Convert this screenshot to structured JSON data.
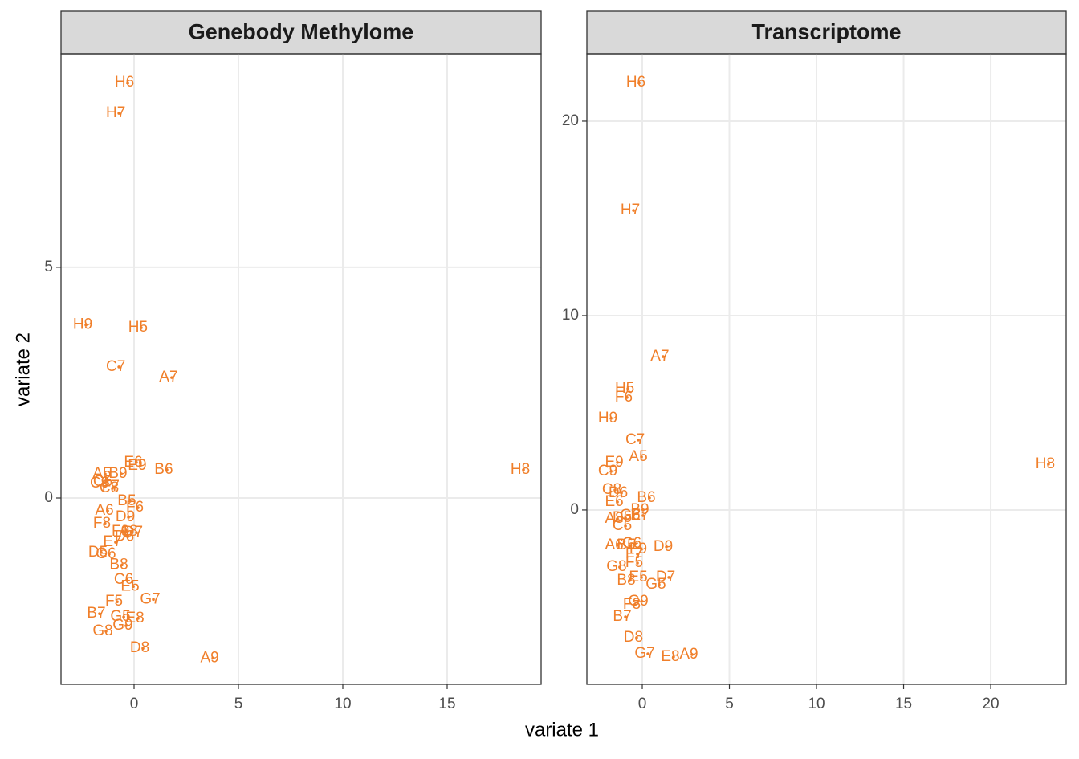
{
  "chart_data": [
    {
      "type": "scatter",
      "title": "Genebody Methylome",
      "x_label": "variate 1",
      "y_label": "variate 2",
      "color": "#F07F2A",
      "grid": true,
      "xlim": [
        -3.5,
        19.5
      ],
      "ylim": [
        -4.04,
        9.63
      ],
      "xticks": [
        0,
        5,
        10,
        15
      ],
      "yticks": [
        0,
        5
      ],
      "labels": [
        "A5",
        "A6",
        "A7",
        "A8",
        "A9",
        "B5",
        "B6",
        "B7",
        "B8",
        "B9",
        "C5",
        "C6",
        "C7",
        "C8",
        "C9",
        "D5",
        "D6",
        "D7",
        "D8",
        "D9",
        "E5",
        "E6",
        "E7",
        "E8",
        "E9",
        "F5",
        "F6",
        "F7",
        "F8",
        "F9",
        "G5",
        "G6",
        "G7",
        "G8",
        "G9",
        "H5",
        "H6",
        "H7",
        "H8",
        "H9"
      ],
      "x": [
        -1.54,
        -1.42,
        1.65,
        -0.27,
        3.62,
        -0.35,
        1.42,
        -1.81,
        -0.73,
        -0.77,
        -1.5,
        -0.5,
        -0.88,
        -1.19,
        -1.65,
        -1.73,
        -0.46,
        -0.04,
        0.27,
        -0.42,
        -0.19,
        -0.04,
        -1.04,
        0.04,
        0.15,
        -0.96,
        0.04,
        -1.12,
        -1.54,
        -0.65,
        -0.65,
        -1.35,
        0.77,
        -1.5,
        -0.54,
        0.19,
        -0.46,
        -0.88,
        18.5,
        -2.46
      ],
      "y": [
        0.52,
        -0.28,
        2.61,
        -0.73,
        -3.47,
        -0.07,
        0.61,
        -2.51,
        -1.45,
        0.52,
        0.35,
        -1.78,
        2.84,
        0.21,
        0.31,
        -1.18,
        -0.84,
        -0.75,
        -3.26,
        -0.42,
        -1.92,
        0.77,
        -0.96,
        -2.61,
        0.7,
        -2.25,
        -0.21,
        0.24,
        -0.56,
        -0.73,
        -2.58,
        -1.22,
        -2.2,
        -2.89,
        -2.77,
        3.69,
        9.0,
        8.34,
        0.61,
        3.75
      ]
    },
    {
      "type": "scatter",
      "title": "Transcriptome",
      "color": "#F07F2A",
      "grid": true,
      "xlim": [
        -3.18,
        24.33
      ],
      "ylim": [
        -8.97,
        23.47
      ],
      "xticks": [
        0,
        5,
        10,
        15,
        20
      ],
      "yticks": [
        0,
        10,
        20
      ],
      "labels": [
        "A5",
        "A6",
        "A7",
        "A8",
        "A9",
        "B5",
        "B6",
        "B7",
        "B8",
        "B9",
        "C5",
        "C6",
        "C7",
        "C8",
        "C9",
        "D5",
        "D6",
        "D7",
        "D8",
        "D9",
        "E5",
        "E6",
        "E7",
        "E8",
        "E9",
        "F5",
        "F6",
        "F7",
        "F8",
        "F9",
        "G5",
        "G6",
        "G7",
        "G8",
        "G9",
        "H5",
        "H6",
        "H7",
        "H8",
        "H9"
      ],
      "x": [
        -0.23,
        -1.61,
        1.01,
        -1.61,
        2.67,
        -0.92,
        0.23,
        -1.15,
        -0.92,
        -0.14,
        -1.15,
        -0.6,
        -0.41,
        -1.75,
        -1.98,
        -1.15,
        -1.38,
        1.34,
        -0.51,
        1.2,
        -0.23,
        -1.61,
        -0.14,
        1.61,
        -1.61,
        -0.46,
        -1.06,
        -0.46,
        -0.6,
        -0.23,
        0.78,
        -0.69,
        0.14,
        -1.48,
        -0.23,
        -1.01,
        -0.37,
        -0.69,
        23.13,
        -1.98
      ],
      "y": [
        2.73,
        -1.82,
        7.89,
        -0.45,
        -7.44,
        -1.82,
        0.62,
        -5.5,
        -3.64,
        0,
        -0.83,
        -1.74,
        3.6,
        1.03,
        1.98,
        -0.41,
        0.87,
        -3.47,
        -6.57,
        -1.9,
        -3.47,
        0.41,
        -0.29,
        -7.56,
        2.44,
        -2.73,
        5.79,
        -2.27,
        -4.88,
        -2.02,
        -3.84,
        -0.29,
        -7.4,
        -2.94,
        -4.71,
        6.24,
        21.98,
        15.41,
        2.36,
        4.71
      ]
    }
  ]
}
